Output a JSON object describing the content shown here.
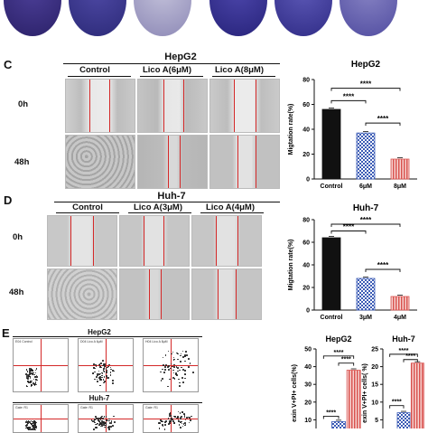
{
  "panels": {
    "C": {
      "letter": "C",
      "cell_line": "HepG2",
      "columns": [
        "Control",
        "Lico A(6μM)",
        "Lico A(8μM)"
      ],
      "rows": [
        "0h",
        "48h"
      ]
    },
    "D": {
      "letter": "D",
      "cell_line": "Huh-7",
      "columns": [
        "Control",
        "Lico A(3μM)",
        "Lico A(4μM)"
      ],
      "rows": [
        "0h",
        "48h"
      ]
    },
    "E": {
      "letter": "E",
      "flow_titles": [
        "HepG2",
        "Huh-7"
      ],
      "flow_labels": [
        "E04 Control",
        "D04 Lico A 6µM",
        "H04 Lico A 8µM",
        "Gate: R1"
      ]
    }
  },
  "colors": {
    "control": "#111111",
    "mid": "#3b5bb5",
    "high": "#d9534f",
    "plate_dark": "#3a2f7d",
    "plate_light": "#a9a6c9"
  },
  "significance": "****",
  "chart_data": [
    {
      "type": "bar",
      "title": "HepG2",
      "ylabel": "Migtation rate(%)",
      "categories": [
        "Control",
        "6μM",
        "8μM"
      ],
      "values": [
        56,
        37,
        16
      ],
      "ylim": [
        0,
        80
      ],
      "yticks": [
        0,
        20,
        40,
        60,
        80
      ],
      "patterns": [
        "solid",
        "checker",
        "stripes"
      ]
    },
    {
      "type": "bar",
      "title": "Huh-7",
      "ylabel": "Migtation rate(%)",
      "categories": [
        "Control",
        "3μM",
        "4μM"
      ],
      "values": [
        64,
        28,
        12
      ],
      "ylim": [
        0,
        80
      ],
      "yticks": [
        0,
        20,
        40,
        60,
        80
      ],
      "patterns": [
        "solid",
        "checker",
        "stripes"
      ]
    },
    {
      "type": "bar",
      "title": "HepG2",
      "ylabel": "exin V+PI+ cells(%)",
      "categories": [
        "",
        "",
        ""
      ],
      "values": [
        null,
        9,
        38
      ],
      "ylim": [
        0,
        50
      ],
      "yticks": [
        0,
        10,
        20,
        30,
        40,
        50
      ],
      "patterns": [
        "solid",
        "checker",
        "stripes"
      ]
    },
    {
      "type": "bar",
      "title": "Huh-7",
      "ylabel": "exin V+PI+ cells( %)",
      "categories": [
        "",
        "",
        ""
      ],
      "values": [
        null,
        7,
        21
      ],
      "ylim": [
        0,
        25
      ],
      "yticks": [
        0,
        5,
        10,
        15,
        20,
        25
      ],
      "patterns": [
        "solid",
        "checker",
        "stripes"
      ]
    }
  ]
}
